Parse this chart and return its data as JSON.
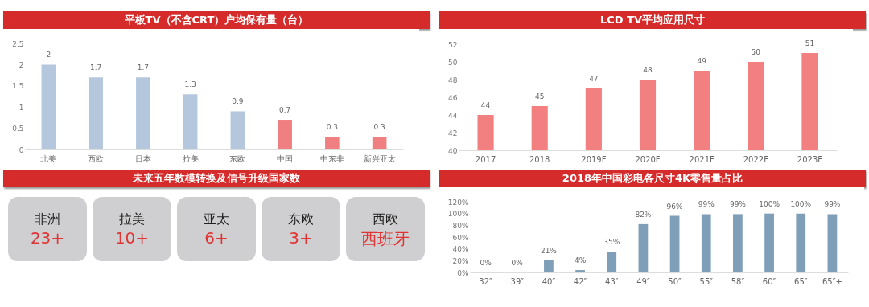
{
  "chart_data": [
    {
      "type": "bar",
      "title": "平板TV（不含CRT）户均保有量（台）",
      "categories": [
        "北美",
        "西欧",
        "日本",
        "拉美",
        "东欧",
        "中国",
        "中东非",
        "新兴亚太"
      ],
      "values": [
        2,
        1.7,
        1.7,
        1.3,
        0.9,
        0.7,
        0.3,
        0.3
      ],
      "colors": [
        "#b4c7dc",
        "#b4c7dc",
        "#b4c7dc",
        "#b4c7dc",
        "#b4c7dc",
        "#f07f82",
        "#f07f82",
        "#f07f82"
      ],
      "ylim": [
        0,
        2.5
      ],
      "yticks": [
        0,
        0.5,
        1,
        1.5,
        2,
        2.5
      ],
      "data_labels": true
    },
    {
      "type": "bar",
      "title": "LCD TV平均应用尺寸",
      "categories": [
        "2017",
        "2018",
        "2019F",
        "2020F",
        "2021F",
        "2022F",
        "2023F"
      ],
      "values": [
        44,
        45,
        47,
        48,
        49,
        50,
        51
      ],
      "color": "#f28080",
      "ylim": [
        40,
        52
      ],
      "yticks": [
        40,
        42,
        44,
        46,
        48,
        50,
        52
      ],
      "data_labels": true
    },
    {
      "type": "other",
      "title": "未来五年数模转换及信号升级国家数",
      "categories": [
        "非洲",
        "拉美",
        "亚太",
        "东欧",
        "西欧"
      ],
      "annotations": [
        "23+",
        "10+",
        "6+",
        "3+",
        "西班牙"
      ]
    },
    {
      "type": "bar",
      "title": "2018年中国彩电各尺寸4K零售量占比",
      "categories": [
        "32″",
        "39″",
        "40″",
        "42″",
        "43″",
        "49″",
        "50″",
        "55″",
        "58″",
        "60″",
        "65″",
        "65″+"
      ],
      "values": [
        0,
        0,
        21,
        4,
        35,
        82,
        96,
        99,
        99,
        100,
        100,
        99
      ],
      "value_labels": [
        "0%",
        "0%",
        "21%",
        "4%",
        "35%",
        "82%",
        "96%",
        "99%",
        "99%",
        "100%",
        "100%",
        "99%"
      ],
      "color": "#7f9fb8",
      "ylim": [
        0,
        120
      ],
      "yticks": [
        {
          "value": 0,
          "label": "0%"
        },
        {
          "value": 20,
          "label": "20%"
        },
        {
          "value": 40,
          "label": "40%"
        },
        {
          "value": 60,
          "label": "60%"
        },
        {
          "value": 80,
          "label": "80%"
        },
        {
          "value": 100,
          "label": "100%"
        },
        {
          "value": 120,
          "label": "120%"
        }
      ]
    }
  ]
}
